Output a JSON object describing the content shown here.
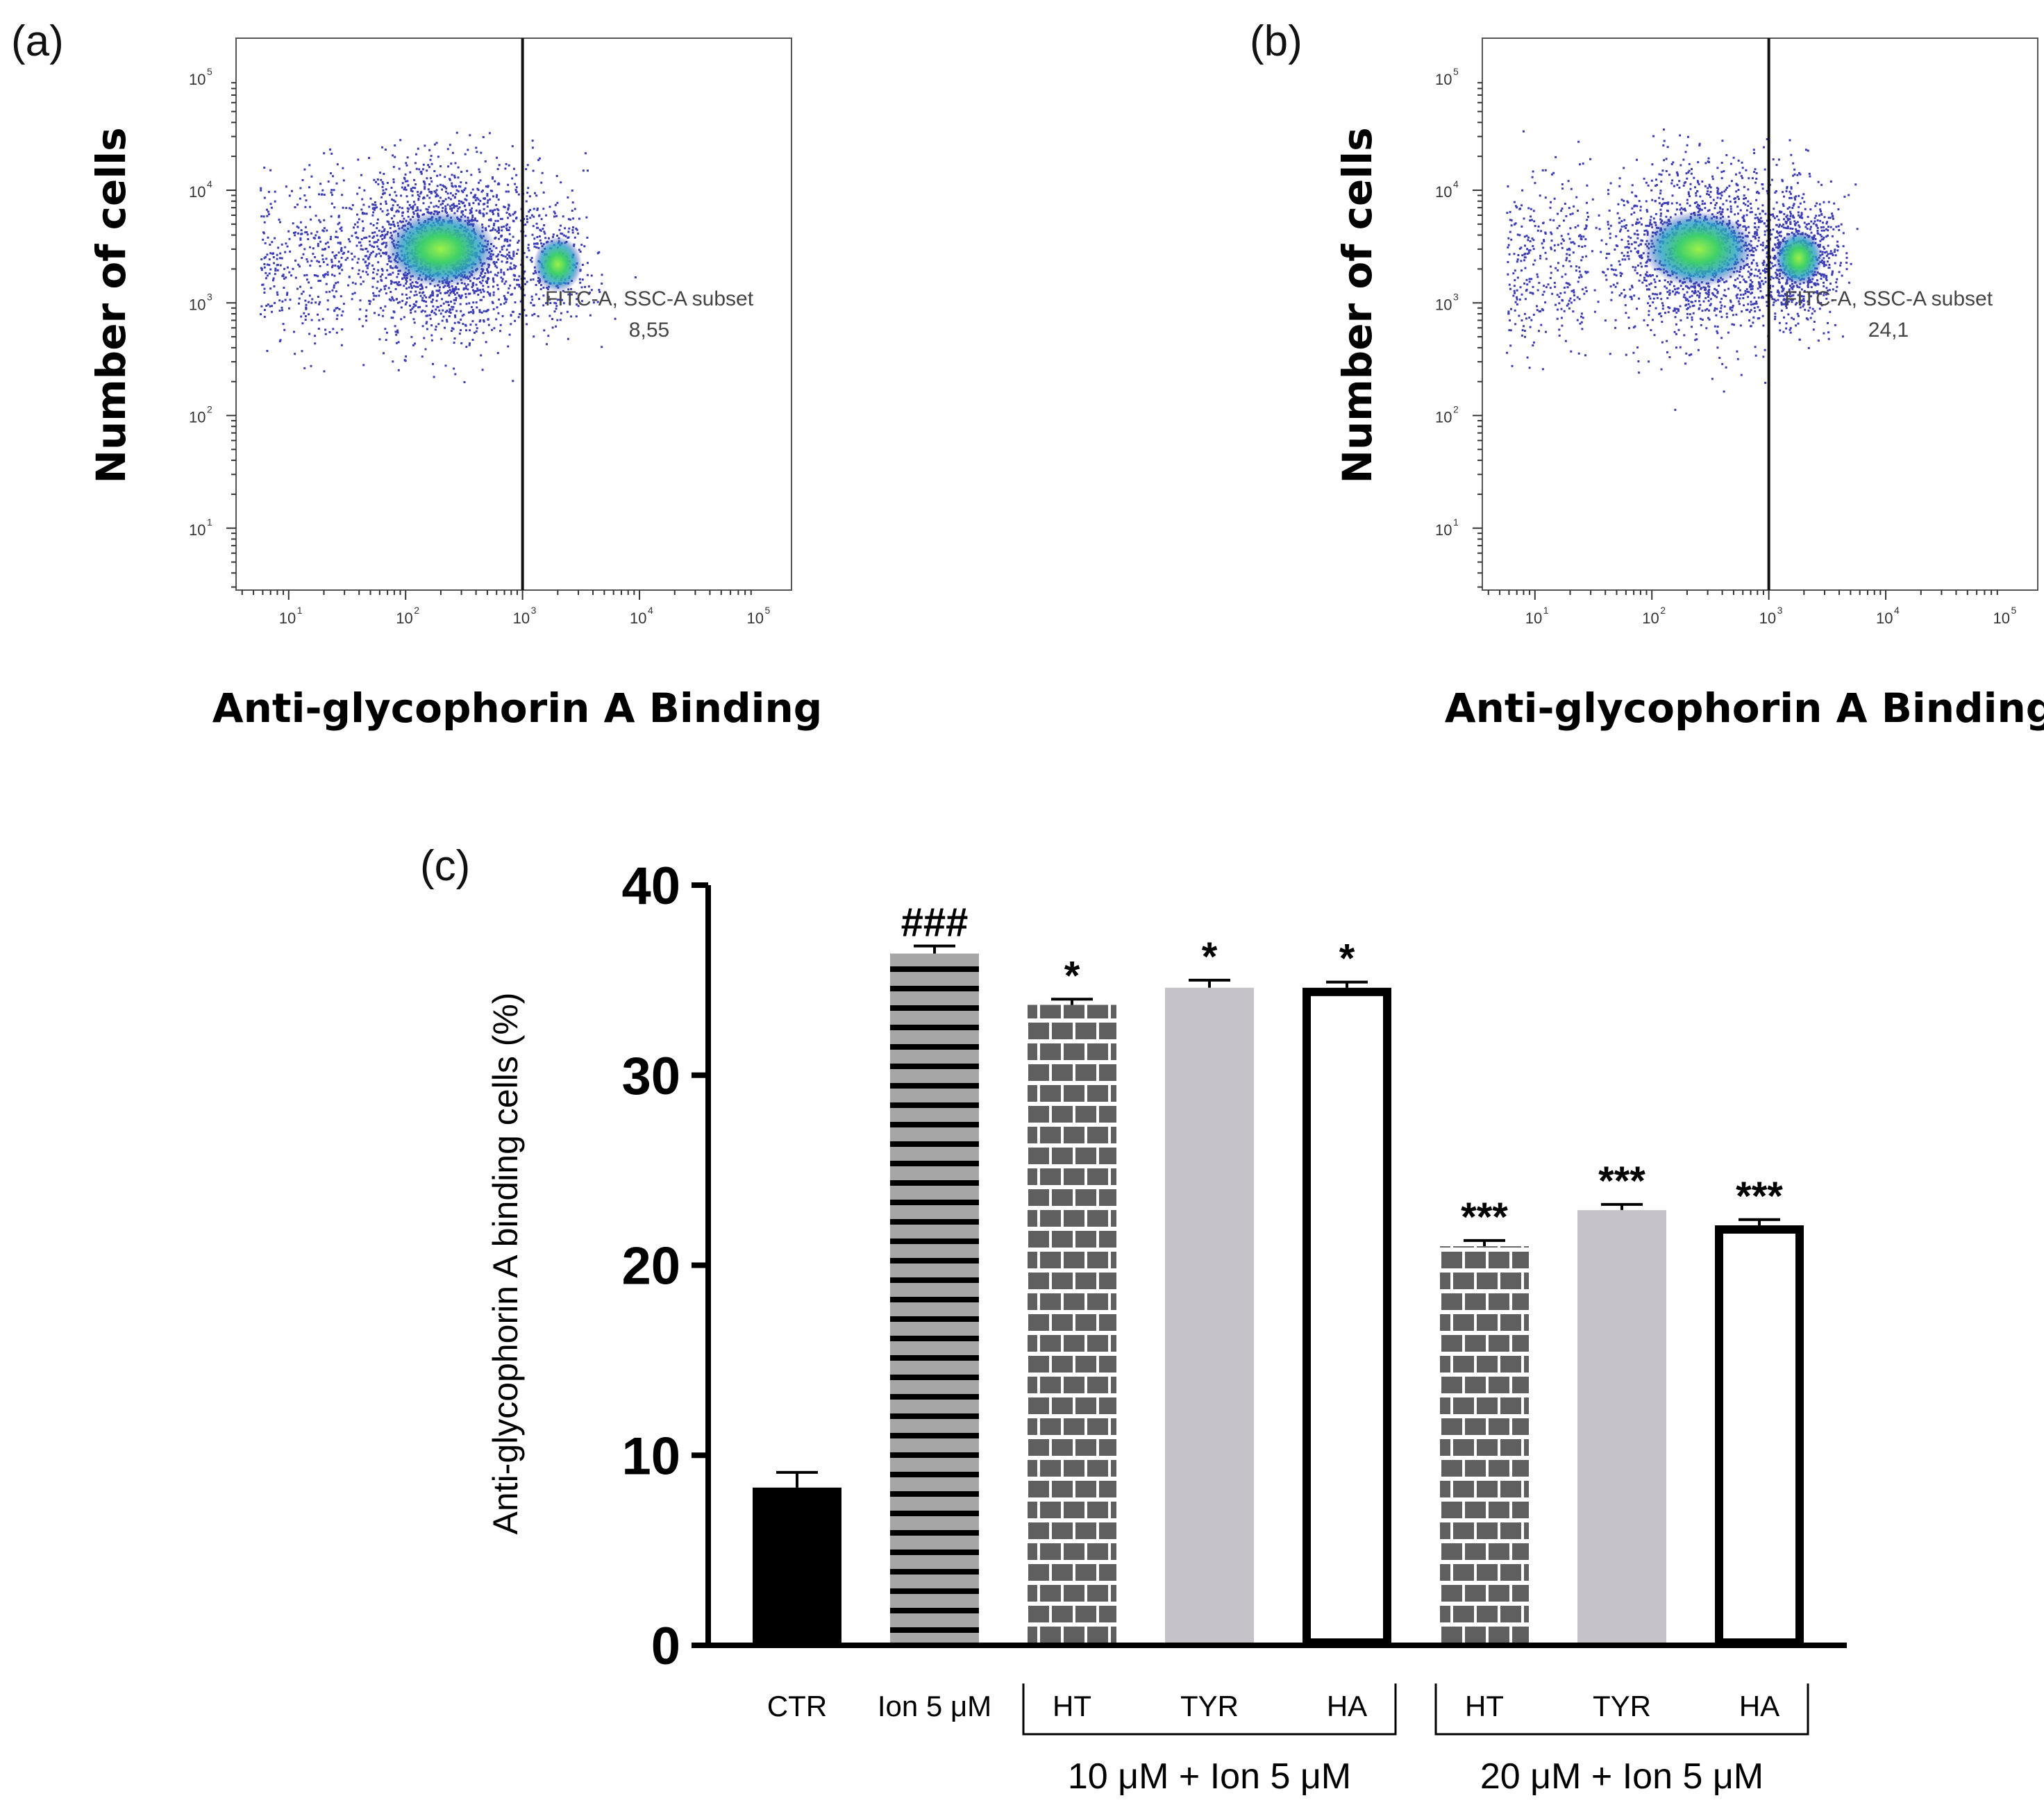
{
  "figure_panels": {
    "a_label": "(a)",
    "b_label": "(b)",
    "c_label": "(c)"
  },
  "flow_panels": [
    {
      "panel": "a",
      "xlabel": "Anti-glycophorin A Binding",
      "ylabel": "Number of cells",
      "gate_name": "FITC-A, SSC-A subset",
      "gate_value": "8,55",
      "gate_x": 1000,
      "x_tick_exponents": [
        "1",
        "2",
        "3",
        "4",
        "5"
      ],
      "y_tick_exponents": [
        "1",
        "2",
        "3",
        "4",
        "5"
      ],
      "tick_base": "10",
      "main_population": {
        "x": 200,
        "y": 3000
      },
      "positive_population": {
        "x": 2000,
        "y": 2200
      }
    },
    {
      "panel": "b",
      "xlabel": "Anti-glycophorin A Binding",
      "ylabel": "Number of cells",
      "gate_name": "FITC-A, SSC-A subset",
      "gate_value": "24,1",
      "gate_x": 1000,
      "x_tick_exponents": [
        "1",
        "2",
        "3",
        "4",
        "5"
      ],
      "y_tick_exponents": [
        "1",
        "2",
        "3",
        "4",
        "5"
      ],
      "tick_base": "10",
      "main_population": {
        "x": 250,
        "y": 3000
      },
      "positive_population": {
        "x": 1800,
        "y": 2500
      }
    }
  ],
  "chart_data": {
    "type": "bar",
    "ylabel": "Anti-glycophorin A binding cells (%)",
    "ylim": [
      0,
      40
    ],
    "yticks": [
      "0",
      "10",
      "20",
      "30",
      "40"
    ],
    "bars": [
      {
        "label": "CTR",
        "value": 8.3,
        "error": 0.8,
        "fill": "solid-black",
        "sig": ""
      },
      {
        "label": "Ion 5 μM",
        "value": 36.4,
        "error": 0.4,
        "fill": "horizontal-stripes",
        "sig": "###"
      },
      {
        "label": "HT",
        "value": 33.7,
        "error": 0.3,
        "fill": "brick",
        "sig": "*"
      },
      {
        "label": "TYR",
        "value": 34.6,
        "error": 0.4,
        "fill": "light-gray",
        "sig": "*"
      },
      {
        "label": "HA",
        "value": 34.6,
        "error": 0.3,
        "fill": "white-outline",
        "sig": "*"
      },
      {
        "label": "HT",
        "value": 21.0,
        "error": 0.3,
        "fill": "brick",
        "sig": "***"
      },
      {
        "label": "TYR",
        "value": 22.9,
        "error": 0.3,
        "fill": "light-gray",
        "sig": "***"
      },
      {
        "label": "HA",
        "value": 22.1,
        "error": 0.3,
        "fill": "white-outline",
        "sig": "***"
      }
    ],
    "groups": [
      {
        "label": "10 μM + Ion 5 μM",
        "bars": [
          2,
          4
        ]
      },
      {
        "label": "20 μM + Ion 5 μM",
        "bars": [
          5,
          7
        ]
      }
    ],
    "colors": {
      "black": "#000000",
      "stripe_gray": "#a6a6a6",
      "brick_gray": "#5f5f5f",
      "light_gray": "#c5c3c7",
      "flow_blue": "#1a1aa8",
      "flow_dense": "#3fd06a"
    }
  }
}
